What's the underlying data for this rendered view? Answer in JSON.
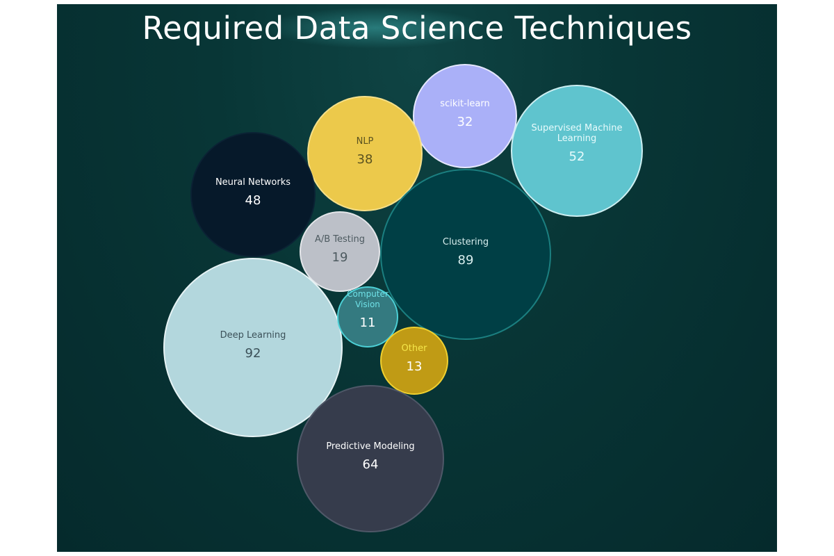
{
  "chart_data": {
    "type": "bubble",
    "title": "Required Data Science Techniques",
    "items": [
      {
        "label": "scikit-learn",
        "value": 32,
        "color": "#aab0f8",
        "text_color": "#ffffff"
      },
      {
        "label": "Supervised Machine Learning",
        "value": 52,
        "color": "#5fc4ce",
        "text_color": "#e8fbfc"
      },
      {
        "label": "NLP",
        "value": 38,
        "color": "#ecc94b",
        "text_color": "#5a5220"
      },
      {
        "label": "Neural Networks",
        "value": 48,
        "color": "#06192a",
        "text_color": "#ffffff"
      },
      {
        "label": "A/B Testing",
        "value": 19,
        "color": "#bcc0c8",
        "text_color": "#4d5a60"
      },
      {
        "label": "Clustering",
        "value": 89,
        "color": "#003f45",
        "text_color": "#d8eeee"
      },
      {
        "label": "Deep Learning",
        "value": 92,
        "color": "#b3d7dd",
        "text_color": "#3b5058"
      },
      {
        "label": "Computer Vision",
        "value": 11,
        "color": "#347a80",
        "text_color": "#6fe0e6"
      },
      {
        "label": "Other",
        "value": 13,
        "color": "#c09b15",
        "text_color": "#f5e64a"
      },
      {
        "label": "Predictive Modeling",
        "value": 64,
        "color": "#363c4c",
        "text_color": "#ffffff"
      }
    ]
  }
}
